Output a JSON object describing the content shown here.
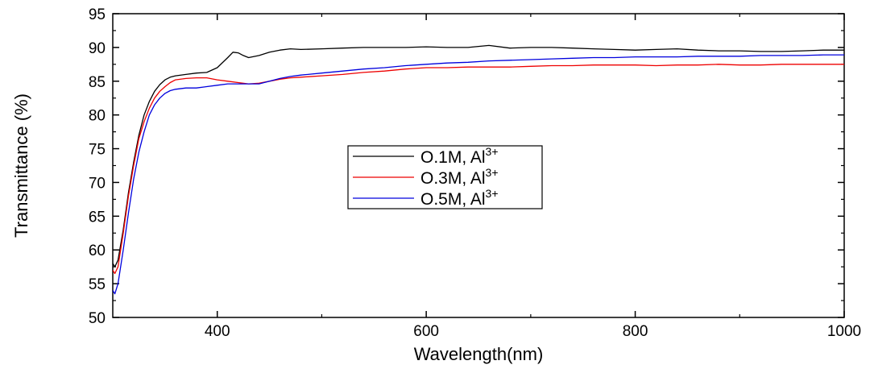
{
  "chart_data": {
    "type": "line",
    "title": "",
    "xlabel": "Wavelength(nm)",
    "ylabel": "Transmittance (%)",
    "xlim": [
      300,
      1000
    ],
    "ylim": [
      50,
      95
    ],
    "x_ticks": [
      "400",
      "600",
      "800",
      "1000"
    ],
    "y_ticks": [
      "50",
      "55",
      "60",
      "65",
      "70",
      "75",
      "80",
      "85",
      "90",
      "95"
    ],
    "grid": false,
    "legend_position": "center",
    "series": [
      {
        "name_main": "O.1M, Al",
        "name_sup": "3+",
        "color": "#000000",
        "x": [
          300,
          302,
          305,
          310,
          315,
          320,
          325,
          330,
          335,
          340,
          345,
          350,
          355,
          360,
          370,
          380,
          390,
          400,
          410,
          415,
          420,
          425,
          430,
          440,
          450,
          460,
          470,
          480,
          500,
          520,
          540,
          560,
          580,
          600,
          620,
          640,
          660,
          680,
          700,
          720,
          740,
          760,
          780,
          800,
          820,
          840,
          860,
          880,
          900,
          920,
          940,
          960,
          980,
          1000
        ],
        "y": [
          58,
          57.5,
          58.5,
          63,
          68.5,
          73,
          77,
          80,
          82,
          83.5,
          84.5,
          85.2,
          85.6,
          85.8,
          86,
          86.2,
          86.3,
          87,
          88.5,
          89.3,
          89.2,
          88.8,
          88.5,
          88.8,
          89.3,
          89.6,
          89.8,
          89.7,
          89.8,
          89.9,
          90,
          90,
          90,
          90.1,
          90,
          90,
          90.3,
          89.9,
          90,
          90,
          89.9,
          89.8,
          89.7,
          89.6,
          89.7,
          89.8,
          89.6,
          89.5,
          89.5,
          89.4,
          89.4,
          89.5,
          89.6,
          89.6
        ]
      },
      {
        "name_main": "O.3M, Al",
        "name_sup": "3+",
        "color": "#ee0000",
        "x": [
          300,
          302,
          305,
          310,
          315,
          320,
          325,
          330,
          335,
          340,
          345,
          350,
          355,
          360,
          370,
          380,
          390,
          400,
          410,
          420,
          430,
          440,
          450,
          460,
          470,
          480,
          500,
          520,
          540,
          560,
          580,
          600,
          620,
          640,
          660,
          680,
          700,
          720,
          740,
          760,
          780,
          800,
          820,
          840,
          860,
          880,
          900,
          920,
          940,
          960,
          980,
          1000
        ],
        "y": [
          57,
          56.5,
          57.5,
          62.5,
          68,
          72.5,
          76.5,
          79,
          81,
          82.5,
          83.5,
          84.2,
          84.8,
          85.2,
          85.4,
          85.5,
          85.5,
          85.2,
          85,
          84.8,
          84.6,
          84.7,
          85,
          85.3,
          85.5,
          85.6,
          85.8,
          86,
          86.3,
          86.5,
          86.8,
          87,
          87,
          87.1,
          87.1,
          87.1,
          87.2,
          87.3,
          87.3,
          87.4,
          87.4,
          87.4,
          87.3,
          87.4,
          87.4,
          87.5,
          87.4,
          87.4,
          87.5,
          87.5,
          87.5,
          87.5
        ]
      },
      {
        "name_main": "O.5M, Al",
        "name_sup": "3+",
        "color": "#0000dd",
        "x": [
          300,
          302,
          305,
          310,
          315,
          320,
          325,
          330,
          335,
          340,
          345,
          350,
          355,
          360,
          370,
          380,
          390,
          400,
          410,
          420,
          430,
          440,
          450,
          460,
          470,
          480,
          500,
          520,
          540,
          560,
          580,
          600,
          620,
          640,
          660,
          680,
          700,
          720,
          740,
          760,
          780,
          800,
          820,
          840,
          860,
          880,
          900,
          920,
          940,
          960,
          980,
          1000
        ],
        "y": [
          54,
          53.5,
          55,
          60,
          65.5,
          70.5,
          74.5,
          77.5,
          80,
          81.5,
          82.5,
          83.2,
          83.6,
          83.8,
          84,
          84,
          84.2,
          84.4,
          84.6,
          84.6,
          84.6,
          84.6,
          85,
          85.4,
          85.7,
          85.9,
          86.2,
          86.5,
          86.8,
          87,
          87.3,
          87.5,
          87.7,
          87.8,
          88,
          88.1,
          88.2,
          88.3,
          88.4,
          88.5,
          88.5,
          88.6,
          88.6,
          88.6,
          88.7,
          88.7,
          88.7,
          88.8,
          88.8,
          88.8,
          88.9,
          88.9
        ]
      }
    ]
  }
}
